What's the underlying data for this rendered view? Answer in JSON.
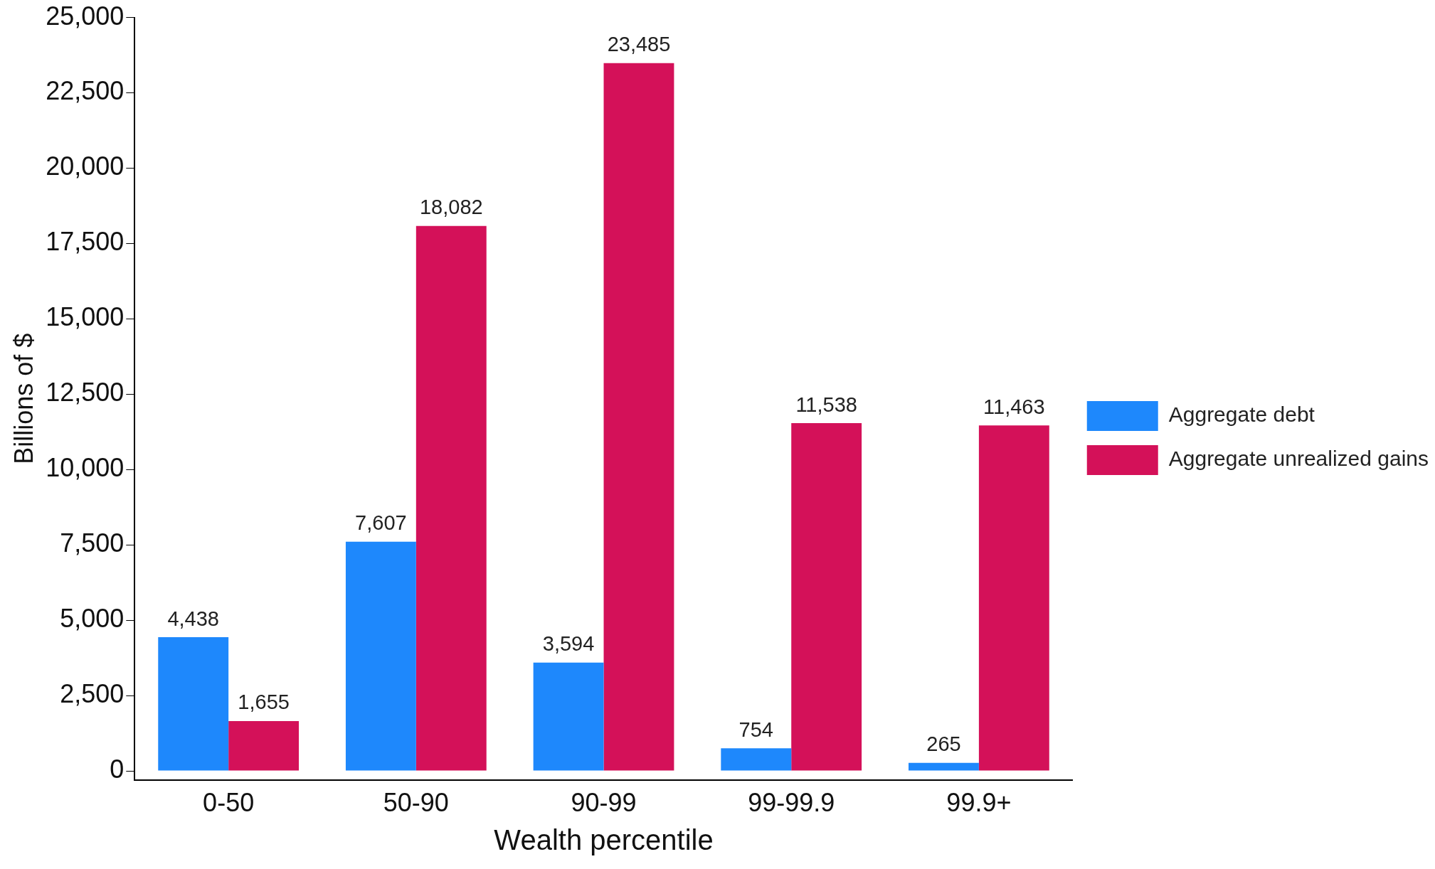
{
  "chart_data": {
    "type": "bar",
    "xlabel": "Wealth percentile",
    "ylabel": "Billions of $",
    "categories": [
      "0-50",
      "50-90",
      "90-99",
      "99-99.9",
      "99.9+"
    ],
    "series": [
      {
        "name": "Aggregate debt",
        "color": "#1e88fc",
        "values": [
          4438,
          7607,
          3594,
          754,
          265
        ],
        "value_labels": [
          "4,438",
          "7,607",
          "3,594",
          "754",
          "265"
        ]
      },
      {
        "name": "Aggregate unrealized gains",
        "color": "#d41159",
        "values": [
          1655,
          18082,
          23485,
          11538,
          11463
        ],
        "value_labels": [
          "1,655",
          "18,082",
          "23,485",
          "11,538",
          "11,463"
        ]
      }
    ],
    "ylim": [
      -300,
      25000
    ],
    "yticks": [
      {
        "value": 0,
        "label": "0"
      },
      {
        "value": 2500,
        "label": "2,500"
      },
      {
        "value": 5000,
        "label": "5,000"
      },
      {
        "value": 7500,
        "label": "7,500"
      },
      {
        "value": 10000,
        "label": "10,000"
      },
      {
        "value": 12500,
        "label": "12,500"
      },
      {
        "value": 15000,
        "label": "15,000"
      },
      {
        "value": 17500,
        "label": "17,500"
      },
      {
        "value": 20000,
        "label": "20,000"
      },
      {
        "value": 22500,
        "label": "22,500"
      },
      {
        "value": 25000,
        "label": "25,000"
      }
    ],
    "grid": false,
    "legend": "right"
  }
}
